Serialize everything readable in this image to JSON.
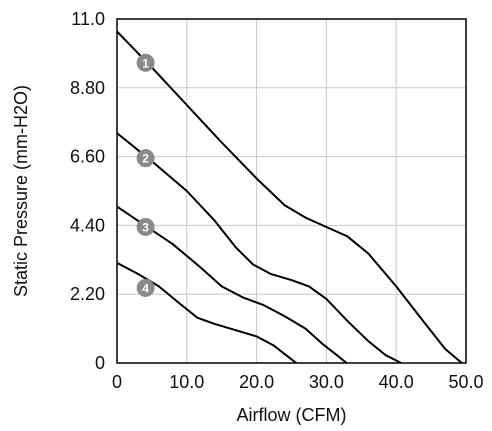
{
  "chart_data": {
    "type": "line",
    "xlabel": "Airflow (CFM)",
    "ylabel": "Static Pressure (mm-H2O)",
    "xlim": [
      0,
      50
    ],
    "ylim": [
      0,
      11
    ],
    "x_ticks": [
      "0",
      "10.0",
      "20.0",
      "30.0",
      "40.0",
      "50.0"
    ],
    "y_ticks": [
      "0",
      "2.20",
      "4.40",
      "6.60",
      "8.80",
      "11.0"
    ],
    "grid": true,
    "marker_color": "#8a8a8a",
    "line_color": "#000000",
    "series": [
      {
        "label": "1",
        "label_pos": [
          4.1,
          9.6
        ],
        "points": [
          [
            0,
            10.6
          ],
          [
            5,
            9.45
          ],
          [
            10,
            8.25
          ],
          [
            15,
            7.05
          ],
          [
            20,
            5.9
          ],
          [
            24,
            5.05
          ],
          [
            27,
            4.65
          ],
          [
            30,
            4.35
          ],
          [
            33,
            4.05
          ],
          [
            36,
            3.5
          ],
          [
            40,
            2.45
          ],
          [
            44,
            1.3
          ],
          [
            47,
            0.45
          ],
          [
            49.4,
            0
          ]
        ]
      },
      {
        "label": "2",
        "label_pos": [
          4.1,
          6.55
        ],
        "points": [
          [
            0,
            7.35
          ],
          [
            5,
            6.45
          ],
          [
            10,
            5.5
          ],
          [
            14,
            4.55
          ],
          [
            17,
            3.7
          ],
          [
            19.5,
            3.15
          ],
          [
            22,
            2.85
          ],
          [
            25,
            2.65
          ],
          [
            27.5,
            2.45
          ],
          [
            30,
            2.05
          ],
          [
            33,
            1.35
          ],
          [
            36,
            0.7
          ],
          [
            38.5,
            0.25
          ],
          [
            40.7,
            0
          ]
        ]
      },
      {
        "label": "3",
        "label_pos": [
          4.1,
          4.35
        ],
        "points": [
          [
            0,
            5.0
          ],
          [
            4,
            4.4
          ],
          [
            8,
            3.8
          ],
          [
            12,
            3.05
          ],
          [
            15,
            2.45
          ],
          [
            18,
            2.1
          ],
          [
            21,
            1.85
          ],
          [
            24,
            1.5
          ],
          [
            27,
            1.1
          ],
          [
            29.5,
            0.6
          ],
          [
            31.5,
            0.25
          ],
          [
            32.9,
            0
          ]
        ]
      },
      {
        "label": "4",
        "label_pos": [
          4.1,
          2.4
        ],
        "points": [
          [
            0,
            3.2
          ],
          [
            3,
            2.85
          ],
          [
            6,
            2.45
          ],
          [
            9,
            1.9
          ],
          [
            11.5,
            1.45
          ],
          [
            14,
            1.25
          ],
          [
            17,
            1.05
          ],
          [
            20,
            0.85
          ],
          [
            22.5,
            0.55
          ],
          [
            24.5,
            0.2
          ],
          [
            25.7,
            0
          ]
        ]
      }
    ]
  }
}
